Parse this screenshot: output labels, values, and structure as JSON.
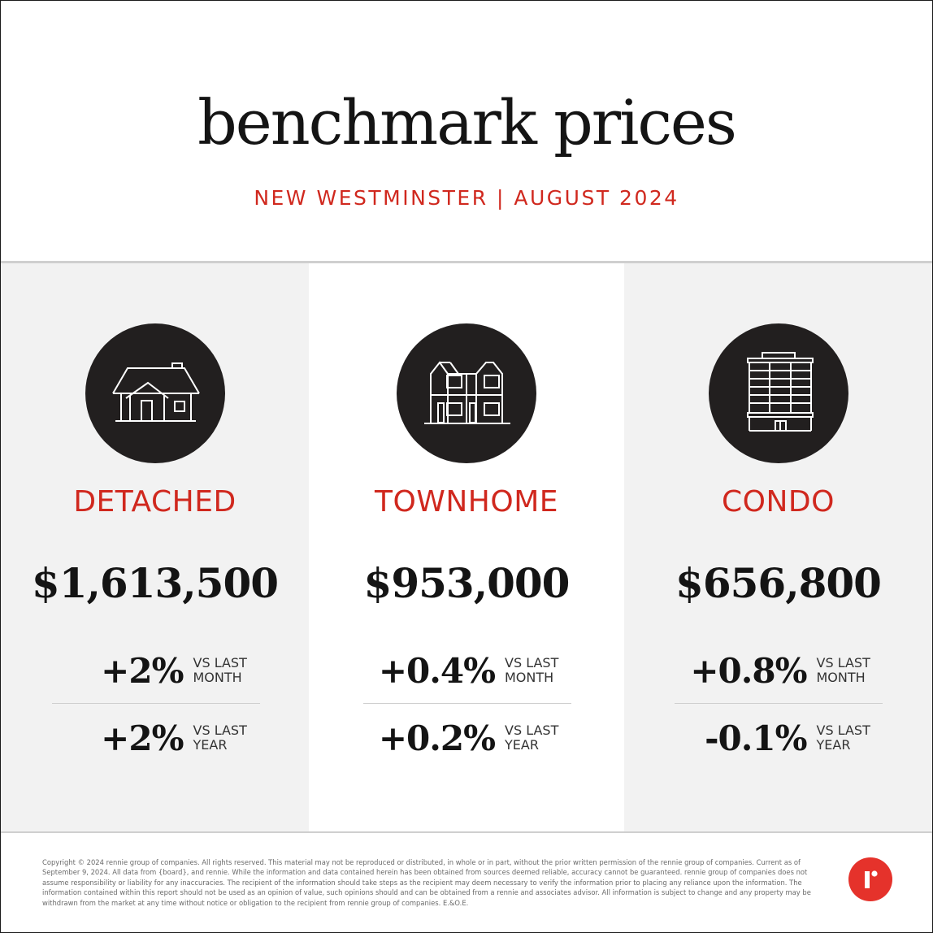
{
  "header": {
    "title": "benchmark prices",
    "subtitle": "NEW WESTMINSTER | AUGUST 2024"
  },
  "colors": {
    "accent": "#d0281e",
    "icon_circle": "#221f1f",
    "gray_panel": "#f2f2f2",
    "logo": "#e5322b"
  },
  "categories": [
    {
      "icon": "house-icon",
      "label": "DETACHED",
      "price": "$1,613,500",
      "month_change": "+2%",
      "year_change": "+2%"
    },
    {
      "icon": "townhouse-icon",
      "label": "TOWNHOME",
      "price": "$953,000",
      "month_change": "+0.4%",
      "year_change": "+0.2%"
    },
    {
      "icon": "condo-building-icon",
      "label": "CONDO",
      "price": "$656,800",
      "month_change": "+0.8%",
      "year_change": "-0.1%"
    }
  ],
  "labels": {
    "vs_last": "VS LAST",
    "month": "MONTH",
    "year": "YEAR"
  },
  "footer": {
    "disclaimer": "Copyright © 2024 rennie group of companies. All rights reserved. This material may not be reproduced or distributed, in whole or in part, without the prior written permission of the rennie group of companies. Current as of September 9, 2024. All data from {board}, and rennie. While the information and data contained herein has been obtained from sources deemed reliable, accuracy cannot be guaranteed. rennie group of companies does not assume responsibility or liability for any inaccuracies. The recipient of the information should take steps as the recipient may deem necessary to verify the information prior to placing any reliance upon the information. The information contained within this report should not be used as an opinion of value, such opinions should and can be obtained from a rennie and associates advisor. All information is subject to change and any property may be withdrawn from the market at any time without notice or obligation to the recipient from rennie group of companies. E.&O.E.",
    "logo_name": "rennie-logo-icon"
  }
}
